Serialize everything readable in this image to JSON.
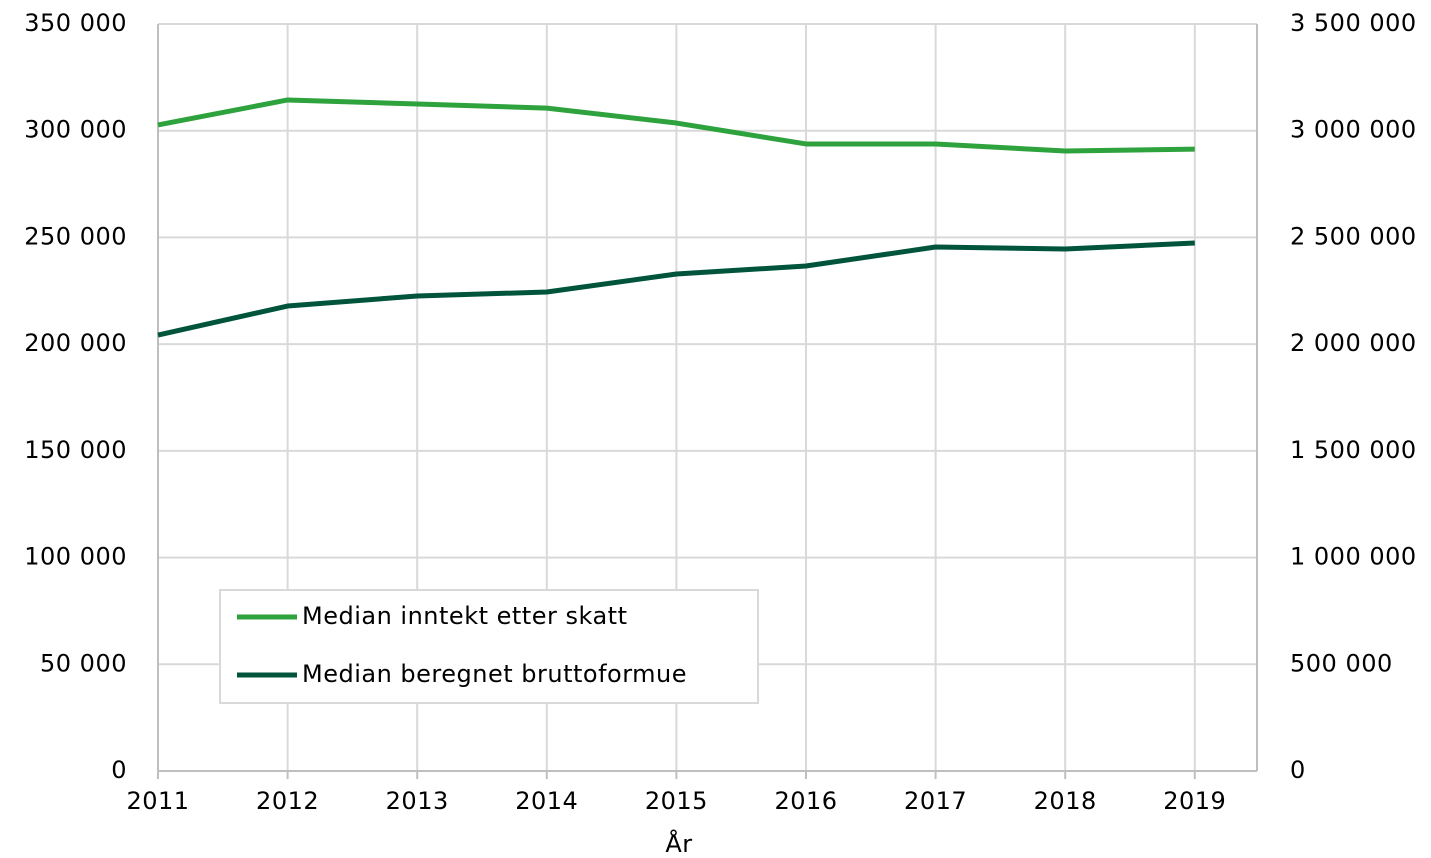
{
  "chart_data": {
    "type": "line",
    "x_label": "År",
    "categories": [
      "2011",
      "2012",
      "2013",
      "2014",
      "2015",
      "2016",
      "2017",
      "2018",
      "2019"
    ],
    "series": [
      {
        "name": "Median inntekt etter skatt",
        "color": "#2ea23c",
        "axis": "y",
        "values": [
          302700,
          314400,
          312500,
          310600,
          303600,
          293800,
          293800,
          290500,
          291400
        ]
      },
      {
        "name": "Median beregnet bruttoformue",
        "color": "#00543c",
        "axis": "y2",
        "values": [
          2042800,
          2178700,
          2225500,
          2244300,
          2328600,
          2366100,
          2455100,
          2445800,
          2473900
        ]
      }
    ],
    "ylim": [
      0,
      350000
    ],
    "yticks": [
      0,
      {
        "value": 50000,
        "label": "50 000"
      },
      {
        "value": 100000,
        "label": "100 000"
      },
      {
        "value": 150000,
        "label": "150 000"
      },
      {
        "value": 200000,
        "label": "200 000"
      },
      {
        "value": 250000,
        "label": "250 000"
      },
      {
        "value": 300000,
        "label": "300 000"
      },
      {
        "value": 350000,
        "label": "350 000"
      }
    ],
    "y2lim": [
      0,
      3500000
    ],
    "y2ticks": [
      0,
      {
        "value": 500000,
        "label": "500 000"
      },
      {
        "value": 1000000,
        "label": "1 000 000"
      },
      {
        "value": 1500000,
        "label": "1 500 000"
      },
      {
        "value": 2000000,
        "label": "2 000 000"
      },
      {
        "value": 2500000,
        "label": "2 500 000"
      },
      {
        "value": 3000000,
        "label": "3 000 000"
      },
      {
        "value": 3500000,
        "label": "3 500 000"
      }
    ],
    "grid": true,
    "legend": "lower left"
  }
}
